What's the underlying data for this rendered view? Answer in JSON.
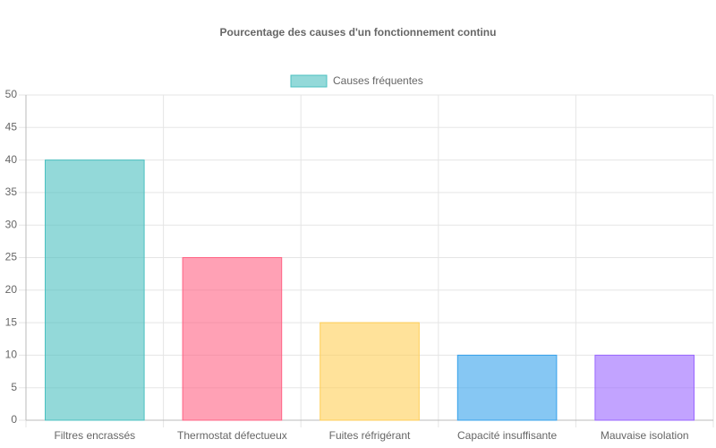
{
  "chart_data": {
    "type": "bar",
    "title": "Pourcentage des causes d'un fonctionnement continu",
    "categories": [
      "Filtres encrassés",
      "Thermostat défectueux",
      "Fuites réfrigérant",
      "Capacité insuffisante",
      "Mauvaise isolation"
    ],
    "series": [
      {
        "name": "Causes fréquentes",
        "values": [
          40,
          25,
          15,
          10,
          10
        ],
        "colors": [
          "rgba(75,192,192,0.6)",
          "rgba(255,99,132,0.6)",
          "rgba(255,206,86,0.6)",
          "rgba(54,162,235,0.6)",
          "rgba(153,102,255,0.6)"
        ],
        "border_colors": [
          "rgb(75,192,192)",
          "rgb(255,99,132)",
          "rgb(255,206,86)",
          "rgb(54,162,235)",
          "rgb(153,102,255)"
        ]
      }
    ],
    "ylim": [
      0,
      50
    ],
    "yticks": [
      0,
      5,
      10,
      15,
      20,
      25,
      30,
      35,
      40,
      45,
      50
    ],
    "grid": true,
    "legend": "top"
  }
}
